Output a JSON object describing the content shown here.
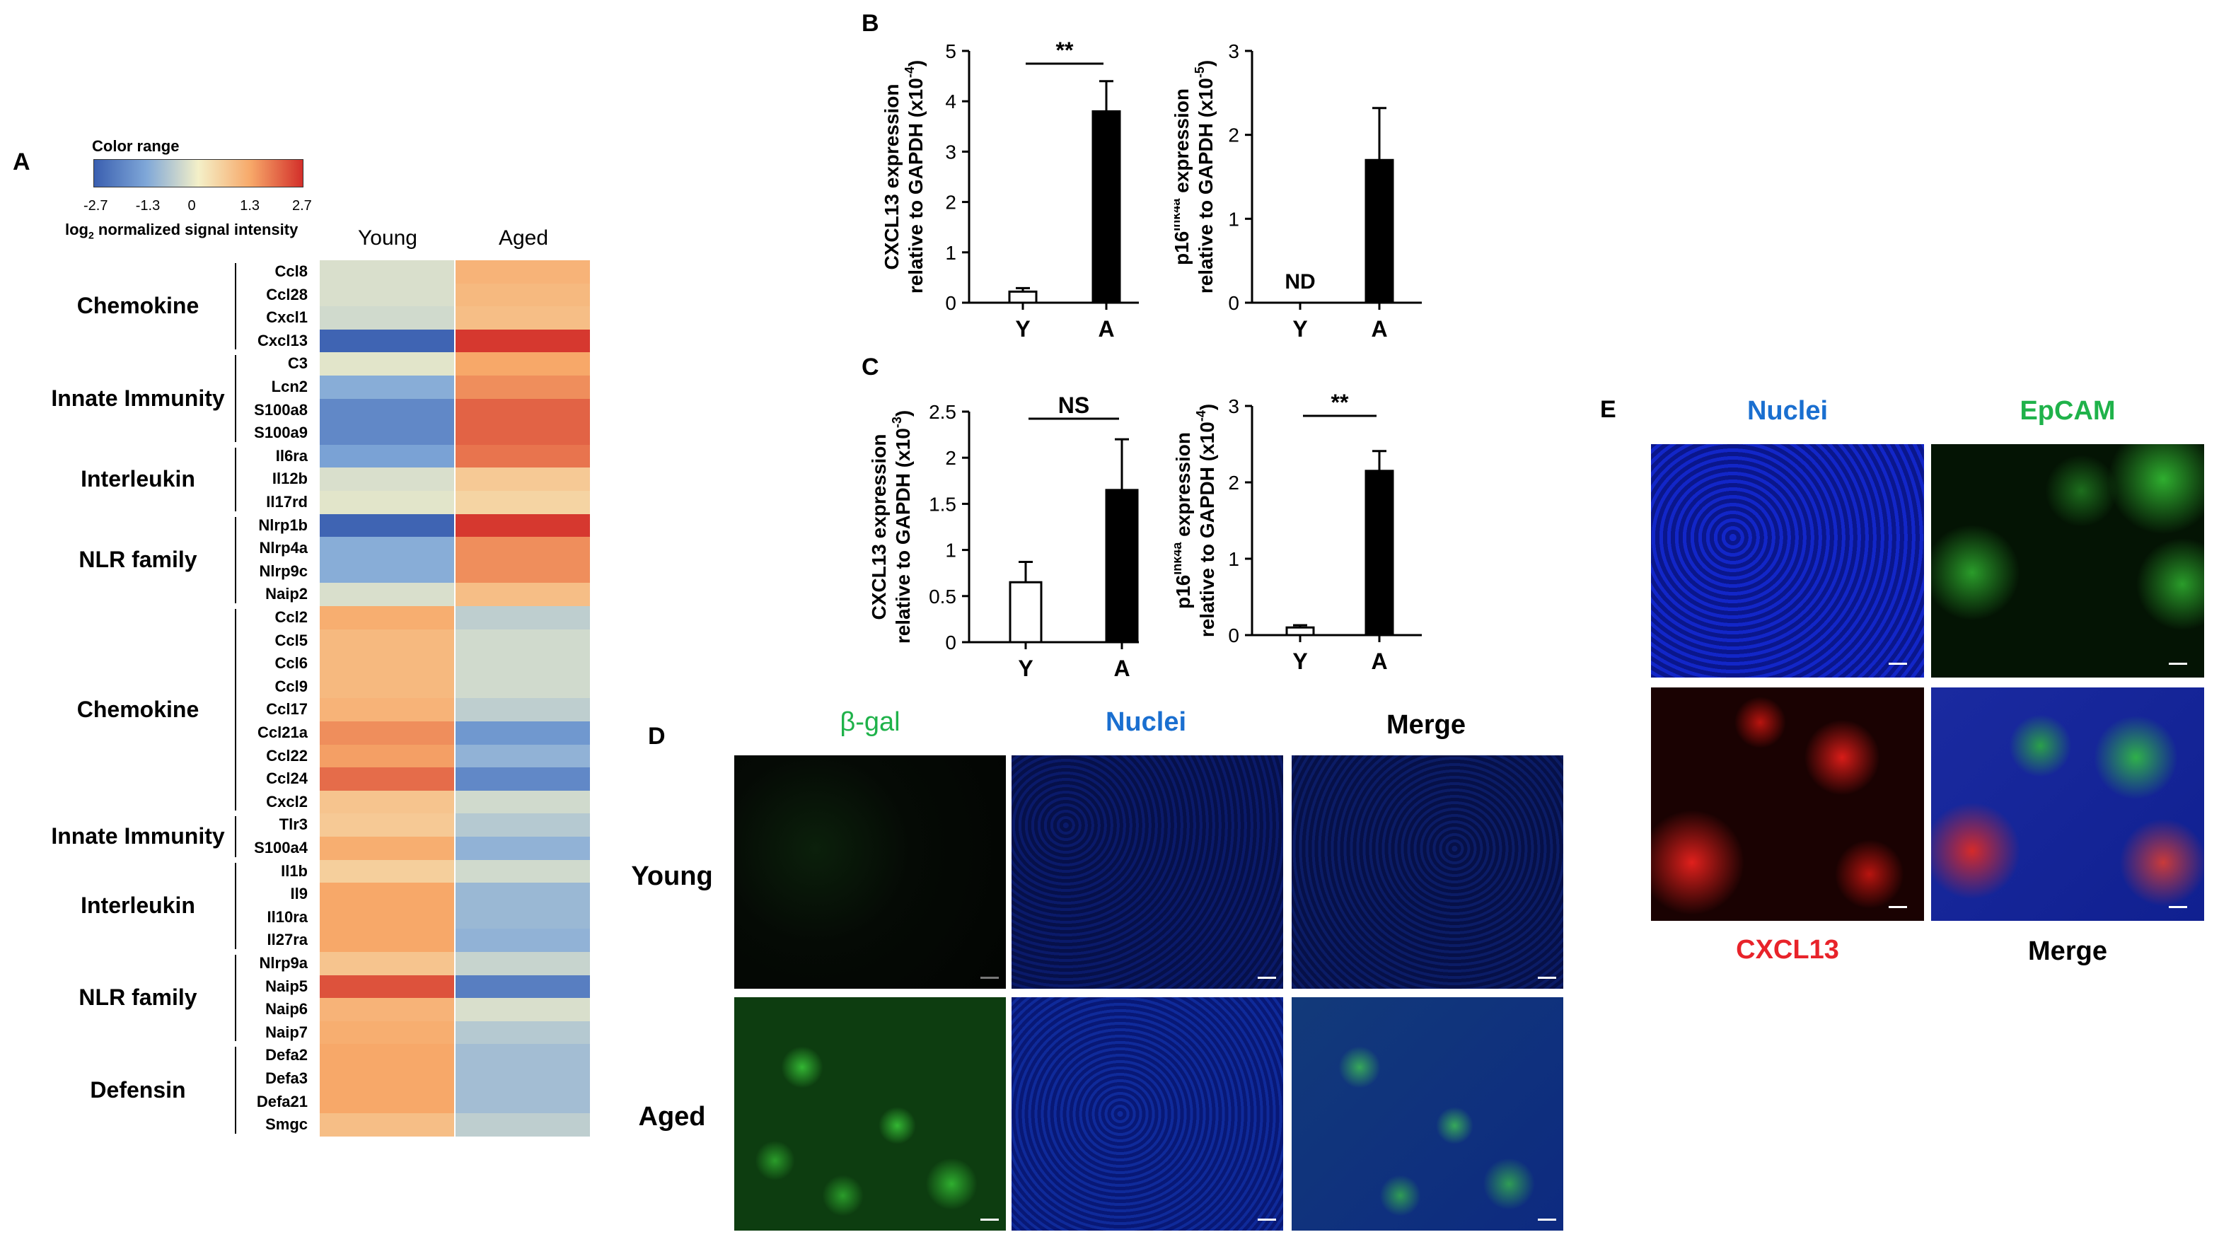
{
  "panels": {
    "a": "A",
    "b": "B",
    "c": "C",
    "d": "D",
    "e": "E"
  },
  "heatmap": {
    "colorbar_title": "Color range",
    "colorbar_ticks": [
      "-2.7",
      "-1.3",
      "0",
      "1.3",
      "2.7"
    ],
    "colorbar_caption_pre": "log",
    "colorbar_caption_sub": "2",
    "colorbar_caption_post": " normalized signal intensity",
    "col_labels": [
      "Young",
      "Aged"
    ],
    "groups": [
      {
        "name": "Chemokine",
        "genes": [
          "Ccl8",
          "Ccl28",
          "Cxcl1",
          "Cxcl13"
        ]
      },
      {
        "name": "Innate Immunity",
        "genes": [
          "C3",
          "Lcn2",
          "S100a8",
          "S100a9"
        ]
      },
      {
        "name": "Interleukin",
        "genes": [
          "Il6ra",
          "Il12b",
          "Il17rd"
        ]
      },
      {
        "name": "NLR family",
        "genes": [
          "Nlrp1b",
          "Nlrp4a",
          "Nlrp9c",
          "Naip2"
        ]
      },
      {
        "name": "Chemokine",
        "genes": [
          "Ccl2",
          "Ccl5",
          "Ccl6",
          "Ccl9",
          "Ccl17",
          "Ccl21a",
          "Ccl22",
          "Ccl24",
          "Cxcl2"
        ]
      },
      {
        "name": "Innate Immunity",
        "genes": [
          "Tlr3",
          "S100a4"
        ]
      },
      {
        "name": "Interleukin",
        "genes": [
          "Il1b",
          "Il9",
          "Il10ra",
          "Il27ra"
        ]
      },
      {
        "name": "NLR family",
        "genes": [
          "Nlrp9a",
          "Naip5",
          "Naip6",
          "Naip7"
        ]
      },
      {
        "name": "Defensin",
        "genes": [
          "Defa2",
          "Defa3",
          "Defa21",
          "Smgc"
        ]
      }
    ],
    "young_values": [
      -0.3,
      -0.3,
      -0.4,
      -2.6,
      -0.2,
      -1.2,
      -1.9,
      -1.9,
      -1.4,
      -0.3,
      -0.2,
      -2.6,
      -1.2,
      -1.2,
      -0.3,
      1.2,
      1.0,
      1.0,
      1.0,
      1.1,
      1.6,
      1.4,
      2.0,
      0.8,
      0.7,
      1.2,
      0.6,
      1.3,
      1.3,
      1.3,
      0.8,
      2.3,
      1.1,
      1.2,
      1.3,
      1.3,
      1.3,
      0.9
    ],
    "aged_values": [
      1.1,
      1.0,
      0.9,
      2.6,
      1.3,
      1.6,
      2.1,
      2.1,
      1.9,
      0.7,
      0.5,
      2.6,
      1.6,
      1.6,
      0.9,
      -0.6,
      -0.4,
      -0.4,
      -0.4,
      -0.6,
      -1.6,
      -1.1,
      -1.9,
      -0.4,
      -0.7,
      -1.1,
      -0.4,
      -1.0,
      -1.0,
      -1.1,
      -0.5,
      -2.1,
      -0.3,
      -0.7,
      -0.9,
      -0.9,
      -0.9,
      -0.6
    ]
  },
  "chart_data": [
    {
      "panel": "B",
      "type": "bar",
      "categories": [
        "Y",
        "A"
      ],
      "values": [
        0.22,
        3.8
      ],
      "errors": [
        0.07,
        0.6
      ],
      "ylabel_line1": "CXCL13 expression",
      "ylabel_line2": "relative to GAPDH (x10",
      "ylabel_exp": "-4",
      "ylabel_close": ")",
      "ylim": [
        0,
        5
      ],
      "yticks": [
        "0",
        "1",
        "2",
        "3",
        "4",
        "5"
      ],
      "significance": "**",
      "bar_fill": [
        "#ffffff",
        "#000000"
      ]
    },
    {
      "panel": "B",
      "type": "bar",
      "categories": [
        "Y",
        "A"
      ],
      "values": [
        0,
        1.7
      ],
      "errors": [
        0,
        0.62
      ],
      "annotation": "ND",
      "ylabel_line1_pre": "p16",
      "ylabel_line1_sup": "Ink4a",
      "ylabel_line1_post": " expression",
      "ylabel_line2": "relative to GAPDH (x10",
      "ylabel_exp": "-5",
      "ylabel_close": ")",
      "ylim": [
        0,
        3
      ],
      "yticks": [
        "0",
        "1",
        "2",
        "3"
      ],
      "bar_fill": [
        "#ffffff",
        "#000000"
      ]
    },
    {
      "panel": "C",
      "type": "bar",
      "categories": [
        "Y",
        "A"
      ],
      "values": [
        0.65,
        1.65
      ],
      "errors": [
        0.22,
        0.55
      ],
      "ylabel_line1": "CXCL13 expression",
      "ylabel_line2": "relative to GAPDH (x10",
      "ylabel_exp": "-3",
      "ylabel_close": ")",
      "ylim": [
        0,
        2.5
      ],
      "yticks": [
        "0",
        "0.5",
        "1",
        "1.5",
        "2",
        "2.5"
      ],
      "significance": "NS",
      "bar_fill": [
        "#ffffff",
        "#000000"
      ]
    },
    {
      "panel": "C",
      "type": "bar",
      "categories": [
        "Y",
        "A"
      ],
      "values": [
        0.1,
        2.15
      ],
      "errors": [
        0.03,
        0.26
      ],
      "ylabel_line1_pre": "p16",
      "ylabel_line1_sup": "Ink4a",
      "ylabel_line1_post": " expression",
      "ylabel_line2": "relative to GAPDH (x10",
      "ylabel_exp": "-4",
      "ylabel_close": ")",
      "ylim": [
        0,
        3
      ],
      "yticks": [
        "0",
        "1",
        "2",
        "3"
      ],
      "significance": "**",
      "bar_fill": [
        "#ffffff",
        "#000000"
      ]
    }
  ],
  "panel_d": {
    "col_labels": [
      "β-gal",
      "Nuclei",
      "Merge"
    ],
    "col_colors": [
      "#1fb24a",
      "#1a6fd0",
      "#000000"
    ],
    "row_labels": [
      "Young",
      "Aged"
    ]
  },
  "panel_e": {
    "top_labels": [
      "Nuclei",
      "EpCAM"
    ],
    "top_colors": [
      "#1a6fd0",
      "#1fb24a"
    ],
    "bottom_labels": [
      "CXCL13",
      "Merge"
    ],
    "bottom_colors": [
      "#e8232a",
      "#000000"
    ]
  }
}
